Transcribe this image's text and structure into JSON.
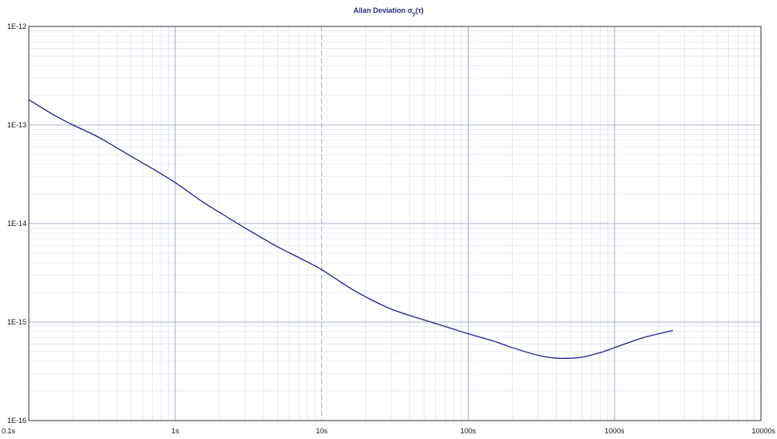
{
  "chart_data": {
    "type": "line",
    "title": "Allan Deviation σ",
    "title_sub": "y",
    "title_tail": "(τ)",
    "xlabel": "",
    "ylabel": "",
    "x_scale": "log",
    "y_scale": "log",
    "xlim": [
      0.1,
      10000
    ],
    "ylim": [
      1e-16,
      1e-12
    ],
    "x_ticks": [
      {
        "value": 0.1,
        "label": "0.1s"
      },
      {
        "value": 1,
        "label": "1s"
      },
      {
        "value": 10,
        "label": "10s"
      },
      {
        "value": 100,
        "label": "100s"
      },
      {
        "value": 1000,
        "label": "1000s"
      },
      {
        "value": 10000,
        "label": "10000s"
      }
    ],
    "y_ticks": [
      {
        "value": 1e-12,
        "label": "1E-12"
      },
      {
        "value": 1e-13,
        "label": "1E-13"
      },
      {
        "value": 1e-14,
        "label": "1E-14"
      },
      {
        "value": 1e-15,
        "label": "1E-15"
      },
      {
        "value": 1e-16,
        "label": "1E-16"
      }
    ],
    "grid": true,
    "colors": {
      "line": "#1f1f8f",
      "major_grid": "#8f9bbf",
      "minor_grid": "#dde2ee",
      "frame": "#333333",
      "title": "#2a2a8a"
    },
    "series": [
      {
        "x": [
          0.1,
          0.15,
          0.2,
          0.3,
          0.5,
          0.7,
          1,
          1.5,
          2,
          3,
          5,
          7,
          10,
          15,
          20,
          30,
          50,
          70,
          100,
          150,
          200,
          300,
          400,
          500,
          600,
          800,
          1000,
          1500,
          2000,
          2500
        ],
        "y": [
          1.8e-13,
          1.25e-13,
          1e-13,
          7.5e-14,
          4.8e-14,
          3.6e-14,
          2.6e-14,
          1.7e-14,
          1.3e-14,
          9e-15,
          5.8e-15,
          4.5e-15,
          3.4e-15,
          2.3e-15,
          1.8e-15,
          1.35e-15,
          1.05e-15,
          9e-16,
          7.6e-16,
          6.4e-16,
          5.5e-16,
          4.6e-16,
          4.3e-16,
          4.3e-16,
          4.4e-16,
          4.9e-16,
          5.5e-16,
          6.8e-16,
          7.6e-16,
          8.2e-16
        ]
      }
    ]
  }
}
